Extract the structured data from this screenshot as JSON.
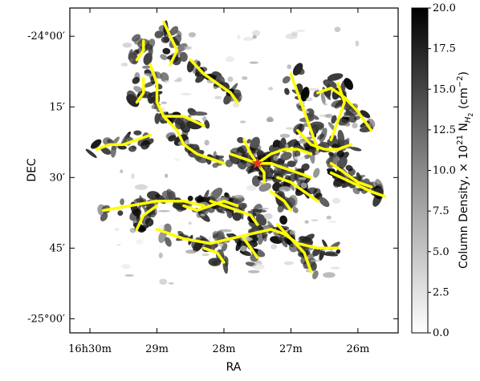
{
  "chart_data": {
    "type": "heatmap",
    "title": "",
    "xlabel": "RA",
    "ylabel": "DEC",
    "x_tick_labels": [
      "16h30m",
      "29m",
      "28m",
      "27m",
      "26m"
    ],
    "y_tick_labels": [
      "-24°00′",
      "15′",
      "30′",
      "45′",
      "-25°00′"
    ],
    "x_ticks_min": [
      30,
      29,
      28,
      27,
      26
    ],
    "y_ticks_arcmin": [
      0,
      15,
      30,
      45,
      60
    ],
    "xlim_min": [
      30.3,
      25.4
    ],
    "ylim_arcmin": [
      63,
      -6
    ],
    "colorbar": {
      "label_parts": [
        "Column Density, × 10",
        "21",
        " N",
        "H",
        "2",
        " (cm",
        "−2",
        ")"
      ],
      "tick_labels": [
        "0.0",
        "2.5",
        "5.0",
        "7.5",
        "10.0",
        "12.5",
        "15.0",
        "17.5",
        "20.0"
      ],
      "ticks": [
        0,
        2.5,
        5,
        7.5,
        10,
        12.5,
        15,
        17.5,
        20
      ],
      "range": [
        0,
        20
      ],
      "colormap": "Greys"
    },
    "filament_color": "#ffff00",
    "marker": {
      "shape": "star",
      "color": "#e8342b",
      "ra_min": 27.5,
      "dec_arcmin": 27
    },
    "filaments": [
      [
        [
          28.6,
          36
        ],
        [
          28.4,
          37
        ],
        [
          28.2,
          36
        ],
        [
          28.0,
          35
        ],
        [
          27.8,
          36
        ]
      ],
      [
        [
          29.8,
          37
        ],
        [
          29.4,
          36
        ],
        [
          29.0,
          35
        ],
        [
          28.6,
          35
        ],
        [
          28.3,
          36
        ]
      ],
      [
        [
          28.2,
          35
        ],
        [
          28.0,
          36
        ],
        [
          27.8,
          37
        ],
        [
          27.6,
          38
        ],
        [
          27.5,
          40
        ]
      ],
      [
        [
          29.0,
          41
        ],
        [
          28.6,
          43
        ],
        [
          28.2,
          44
        ],
        [
          27.9,
          43
        ],
        [
          27.6,
          42
        ],
        [
          27.3,
          41
        ]
      ],
      [
        [
          27.3,
          41
        ],
        [
          27.1,
          42
        ],
        [
          26.9,
          44
        ],
        [
          26.6,
          45
        ],
        [
          26.3,
          45
        ]
      ],
      [
        [
          29.0,
          36
        ],
        [
          29.2,
          38
        ],
        [
          29.3,
          41
        ]
      ],
      [
        [
          28.3,
          45
        ],
        [
          28.1,
          46
        ],
        [
          28.0,
          48
        ]
      ],
      [
        [
          27.7,
          43
        ],
        [
          27.6,
          45
        ],
        [
          27.5,
          47
        ]
      ],
      [
        [
          27.2,
          40
        ],
        [
          27.0,
          43
        ],
        [
          26.8,
          46
        ],
        [
          26.7,
          50
        ]
      ],
      [
        [
          27.3,
          33
        ],
        [
          27.1,
          35
        ],
        [
          27.0,
          37
        ]
      ],
      [
        [
          29.1,
          6
        ],
        [
          29.0,
          10
        ],
        [
          29.0,
          14
        ],
        [
          28.9,
          17
        ]
      ],
      [
        [
          28.9,
          17
        ],
        [
          28.7,
          20
        ],
        [
          28.6,
          23
        ],
        [
          28.4,
          25
        ],
        [
          28.2,
          26
        ],
        [
          28.0,
          27
        ]
      ],
      [
        [
          29.1,
          21
        ],
        [
          29.3,
          22
        ],
        [
          29.5,
          23
        ],
        [
          29.7,
          23
        ],
        [
          29.9,
          24
        ]
      ],
      [
        [
          28.9,
          17
        ],
        [
          28.6,
          17
        ],
        [
          28.3,
          19
        ]
      ],
      [
        [
          28.5,
          5
        ],
        [
          28.3,
          8
        ],
        [
          28.1,
          10
        ],
        [
          27.9,
          12
        ],
        [
          27.8,
          14
        ]
      ],
      [
        [
          28.9,
          -3
        ],
        [
          28.8,
          0
        ],
        [
          28.7,
          3
        ],
        [
          28.8,
          6
        ]
      ],
      [
        [
          29.2,
          1
        ],
        [
          29.2,
          3
        ],
        [
          29.3,
          5
        ]
      ],
      [
        [
          29.2,
          9
        ],
        [
          29.2,
          12
        ],
        [
          29.3,
          14
        ]
      ],
      [
        [
          27.5,
          27
        ],
        [
          27.3,
          27
        ],
        [
          27.1,
          28
        ],
        [
          26.9,
          29
        ],
        [
          26.7,
          30
        ]
      ],
      [
        [
          27.5,
          27
        ],
        [
          27.3,
          25
        ],
        [
          27.1,
          24
        ],
        [
          26.9,
          24
        ],
        [
          26.7,
          25
        ]
      ],
      [
        [
          27.0,
          8
        ],
        [
          26.9,
          12
        ],
        [
          26.8,
          16
        ],
        [
          26.7,
          20
        ],
        [
          26.6,
          24
        ]
      ],
      [
        [
          26.9,
          20
        ],
        [
          26.7,
          23
        ],
        [
          26.5,
          24
        ],
        [
          26.3,
          24
        ],
        [
          26.1,
          23
        ]
      ],
      [
        [
          26.6,
          12
        ],
        [
          26.4,
          11
        ],
        [
          26.2,
          13
        ],
        [
          26.0,
          16
        ],
        [
          25.8,
          20
        ]
      ],
      [
        [
          26.3,
          10
        ],
        [
          26.2,
          14
        ],
        [
          26.3,
          18
        ],
        [
          26.4,
          22
        ]
      ],
      [
        [
          26.4,
          27
        ],
        [
          26.2,
          29
        ],
        [
          26.0,
          31
        ],
        [
          25.8,
          32
        ]
      ],
      [
        [
          26.4,
          29
        ],
        [
          26.1,
          31
        ],
        [
          25.8,
          33
        ],
        [
          25.6,
          34
        ]
      ],
      [
        [
          27.7,
          22
        ],
        [
          27.6,
          25
        ],
        [
          27.5,
          27
        ]
      ],
      [
        [
          27.9,
          25
        ],
        [
          27.7,
          26
        ],
        [
          27.5,
          27
        ],
        [
          27.4,
          29
        ],
        [
          27.4,
          31
        ]
      ],
      [
        [
          27.2,
          30
        ],
        [
          27.0,
          31
        ],
        [
          26.8,
          33
        ],
        [
          26.6,
          35
        ]
      ]
    ]
  }
}
